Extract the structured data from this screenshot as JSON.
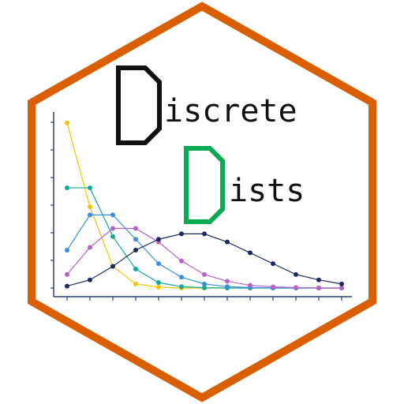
{
  "logo": {
    "title_line1_initial": "D",
    "title_line1_rest": "iscrete",
    "title_line2_initial": "D",
    "title_line2_rest": "ists",
    "colors": {
      "hex_border": "#D95F02",
      "background": "#FFFFFF",
      "initial_1": "#111111",
      "initial_2": "#0AAA50",
      "text": "#111111",
      "axis": "#2C3E80"
    }
  },
  "chart_data": {
    "type": "line",
    "x": [
      0,
      1,
      2,
      3,
      4,
      5,
      6,
      7,
      8,
      9,
      10,
      11,
      12
    ],
    "ylim": [
      0,
      0.65
    ],
    "grid": false,
    "legend": "none",
    "series": [
      {
        "color": "#F5C400",
        "values": [
          0.61,
          0.3,
          0.08,
          0.015,
          0.003,
          0.0,
          0.0,
          0.0,
          0.0,
          0.0,
          0.0,
          0.0,
          0.0
        ]
      },
      {
        "color": "#12A99A",
        "values": [
          0.37,
          0.37,
          0.19,
          0.07,
          0.02,
          0.005,
          0.001,
          0.0,
          0.0,
          0.0,
          0.0,
          0.0,
          0.0
        ]
      },
      {
        "color": "#3B8FE0",
        "values": [
          0.14,
          0.27,
          0.27,
          0.18,
          0.09,
          0.04,
          0.015,
          0.005,
          0.002,
          0.0,
          0.0,
          0.0,
          0.0
        ]
      },
      {
        "color": "#B862C9",
        "values": [
          0.05,
          0.15,
          0.22,
          0.22,
          0.17,
          0.1,
          0.05,
          0.025,
          0.01,
          0.004,
          0.002,
          0.0,
          0.0
        ]
      },
      {
        "color": "#1E2A5E",
        "values": [
          0.007,
          0.03,
          0.08,
          0.14,
          0.18,
          0.2,
          0.2,
          0.17,
          0.13,
          0.09,
          0.05,
          0.03,
          0.015
        ]
      }
    ]
  }
}
